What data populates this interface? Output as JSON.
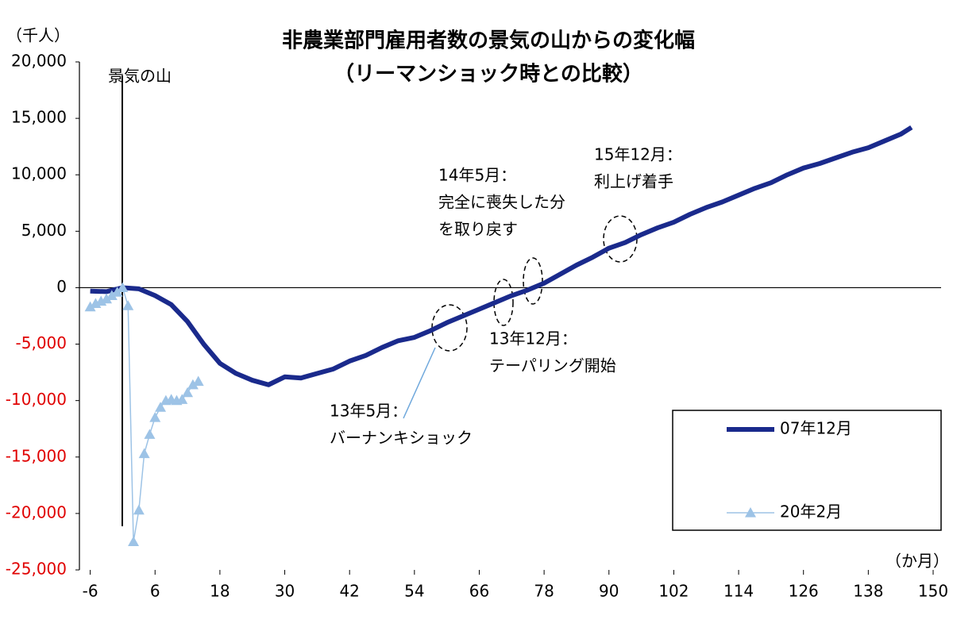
{
  "chart_data": {
    "type": "line",
    "title": "非農業部門雇用者数の景気の山からの変化幅",
    "subtitle": "（リーマンショック時との比較）",
    "y_label": "（千人）",
    "x_label": "（か月）",
    "xlim": [
      -8,
      150
    ],
    "xticks": [
      -6,
      6,
      18,
      30,
      42,
      54,
      66,
      78,
      90,
      102,
      114,
      126,
      138,
      150
    ],
    "ylim": [
      -25000,
      20000
    ],
    "yticks": [
      {
        "value": -25000,
        "label": "-25,000"
      },
      {
        "value": -20000,
        "label": "-20,000"
      },
      {
        "value": -15000,
        "label": "-15,000"
      },
      {
        "value": -10000,
        "label": "-10,000"
      },
      {
        "value": -5000,
        "label": "-5,000"
      },
      0,
      {
        "value": 5000,
        "label": "5,000"
      },
      {
        "value": 10000,
        "label": "10,000"
      },
      {
        "value": 15000,
        "label": "15,000"
      },
      {
        "value": 20000,
        "label": "20,000"
      }
    ],
    "negative_tick_color": "#e00000",
    "legend": "lower right",
    "series": [
      {
        "name": "07年12月",
        "color": "#1a2a8c",
        "x": [
          -6,
          -3,
          0,
          3,
          6,
          9,
          12,
          15,
          18,
          21,
          24,
          27,
          30,
          33,
          36,
          39,
          42,
          45,
          48,
          51,
          54,
          57,
          60,
          63,
          66,
          69,
          72,
          75,
          78,
          81,
          84,
          87,
          90,
          93,
          96,
          99,
          102,
          105,
          108,
          111,
          114,
          117,
          120,
          123,
          126,
          129,
          132,
          135,
          138,
          141,
          144,
          146
        ],
        "values": [
          -300,
          -350,
          0,
          -100,
          -700,
          -1500,
          -3000,
          -5000,
          -6700,
          -7600,
          -8200,
          -8600,
          -7900,
          -8000,
          -7600,
          -7200,
          -6500,
          -6000,
          -5300,
          -4700,
          -4400,
          -3800,
          -3100,
          -2500,
          -1900,
          -1300,
          -700,
          -200,
          400,
          1200,
          2000,
          2700,
          3500,
          4000,
          4700,
          5300,
          5800,
          6500,
          7100,
          7600,
          8200,
          8800,
          9300,
          10000,
          10600,
          11000,
          11500,
          12000,
          12400,
          13000,
          13600,
          14200
        ]
      },
      {
        "name": "20年2月",
        "color": "#9dc3e6",
        "x": [
          -6,
          -5,
          -4,
          -3,
          -2,
          -1,
          0,
          1,
          2,
          3,
          4,
          5,
          6,
          7,
          8,
          9,
          10,
          11,
          12,
          13,
          14
        ],
        "values": [
          -1700,
          -1400,
          -1200,
          -1000,
          -700,
          -400,
          0,
          -1600,
          -22500,
          -19700,
          -14700,
          -13000,
          -11500,
          -10600,
          -10000,
          -9900,
          -10000,
          -9900,
          -9300,
          -8600,
          -8300
        ]
      }
    ],
    "annotations": [
      {
        "lines": [
          "景気の山"
        ]
      },
      {
        "lines": [
          "13年5月：",
          "バーナンキショック"
        ]
      },
      {
        "lines": [
          "13年12月：",
          "テーパリング開始"
        ]
      },
      {
        "lines": [
          "14年5月：",
          "完全に喪失した分",
          "を取り戻す"
        ]
      },
      {
        "lines": [
          "15年12月：",
          "利上げ着手"
        ]
      }
    ]
  }
}
